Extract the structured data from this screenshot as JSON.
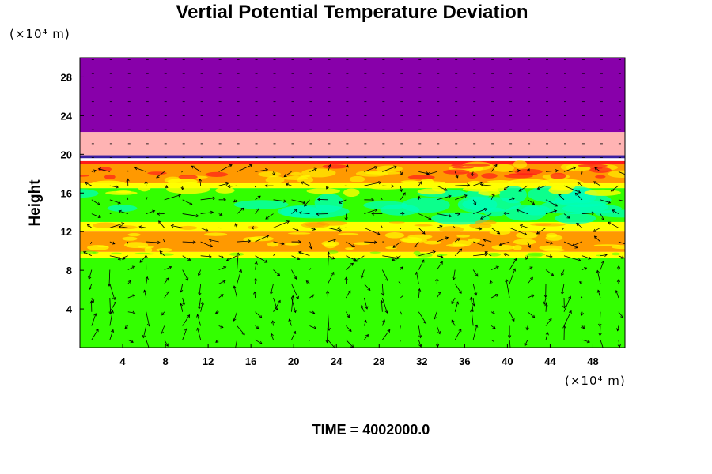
{
  "chart_data": {
    "type": "heatmap",
    "title": "Vertial Potential Temperature Deviation",
    "xlabel": "",
    "ylabel": "Height",
    "x_unit": "(×10⁴ m)",
    "y_unit": "(×10⁴ m)",
    "xlim": [
      0,
      51
    ],
    "ylim": [
      0,
      30
    ],
    "xticks": [
      4,
      8,
      12,
      16,
      20,
      24,
      28,
      32,
      36,
      40,
      44,
      48
    ],
    "yticks": [
      4,
      8,
      12,
      16,
      20,
      24,
      28
    ],
    "grid": false,
    "overlay": "wind vector arrows",
    "colors": {
      "purple": "#8800aa",
      "pink": "#ffb3b3",
      "dark_blue": "#3b1fa0",
      "red": "#ff1a1a",
      "orange": "#ff9900",
      "yellow": "#ffff00",
      "green": "#33ff00",
      "cyan": "#00ffbb"
    },
    "bands": [
      {
        "y0": 22.3,
        "y1": 30,
        "color": "purple"
      },
      {
        "y0": 19.9,
        "y1": 22.3,
        "color": "pink"
      },
      {
        "y0": 19.6,
        "y1": 19.9,
        "color": "dark_blue"
      },
      {
        "y0": 19.0,
        "y1": 19.3,
        "color": "red"
      },
      {
        "y0": 17.0,
        "y1": 19.0,
        "color": "orange"
      },
      {
        "y0": 16.5,
        "y1": 17.0,
        "color": "yellow"
      },
      {
        "y0": 13.0,
        "y1": 16.5,
        "color": "green"
      },
      {
        "y0": 12.0,
        "y1": 13.0,
        "color": "yellow"
      },
      {
        "y0": 9.9,
        "y1": 12.0,
        "color": "orange"
      },
      {
        "y0": 9.3,
        "y1": 9.9,
        "color": "yellow"
      },
      {
        "y0": 0,
        "y1": 9.3,
        "color": "green"
      }
    ]
  },
  "footer": {
    "time_label": "TIME = 4002000.0"
  }
}
